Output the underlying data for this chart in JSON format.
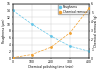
{
  "xlabel": "Chemical polishing time (min)",
  "ylabel_left": "Roughness (µm)",
  "ylabel_right": "Chemical removal (g)",
  "roughness_x": [
    0,
    100,
    200,
    300,
    400
  ],
  "roughness_y": [
    14.0,
    10.0,
    6.5,
    3.5,
    2.0
  ],
  "removal_x": [
    0,
    100,
    200,
    300,
    400
  ],
  "removal_y": [
    0.05,
    0.4,
    1.2,
    2.8,
    5.5
  ],
  "roughness_color": "#63c5e8",
  "removal_color": "#f0a030",
  "xlim": [
    0,
    400
  ],
  "ylim_left": [
    0,
    16
  ],
  "ylim_right": [
    0,
    6
  ],
  "legend_roughness": "Roughness",
  "legend_removal": "Chemical removal",
  "xticks": [
    0,
    100,
    200,
    300,
    400
  ],
  "yticks_left": [
    0,
    2,
    4,
    6,
    8,
    10,
    12,
    14,
    16
  ],
  "yticks_right": [
    0,
    1,
    2,
    3,
    4,
    5,
    6
  ]
}
